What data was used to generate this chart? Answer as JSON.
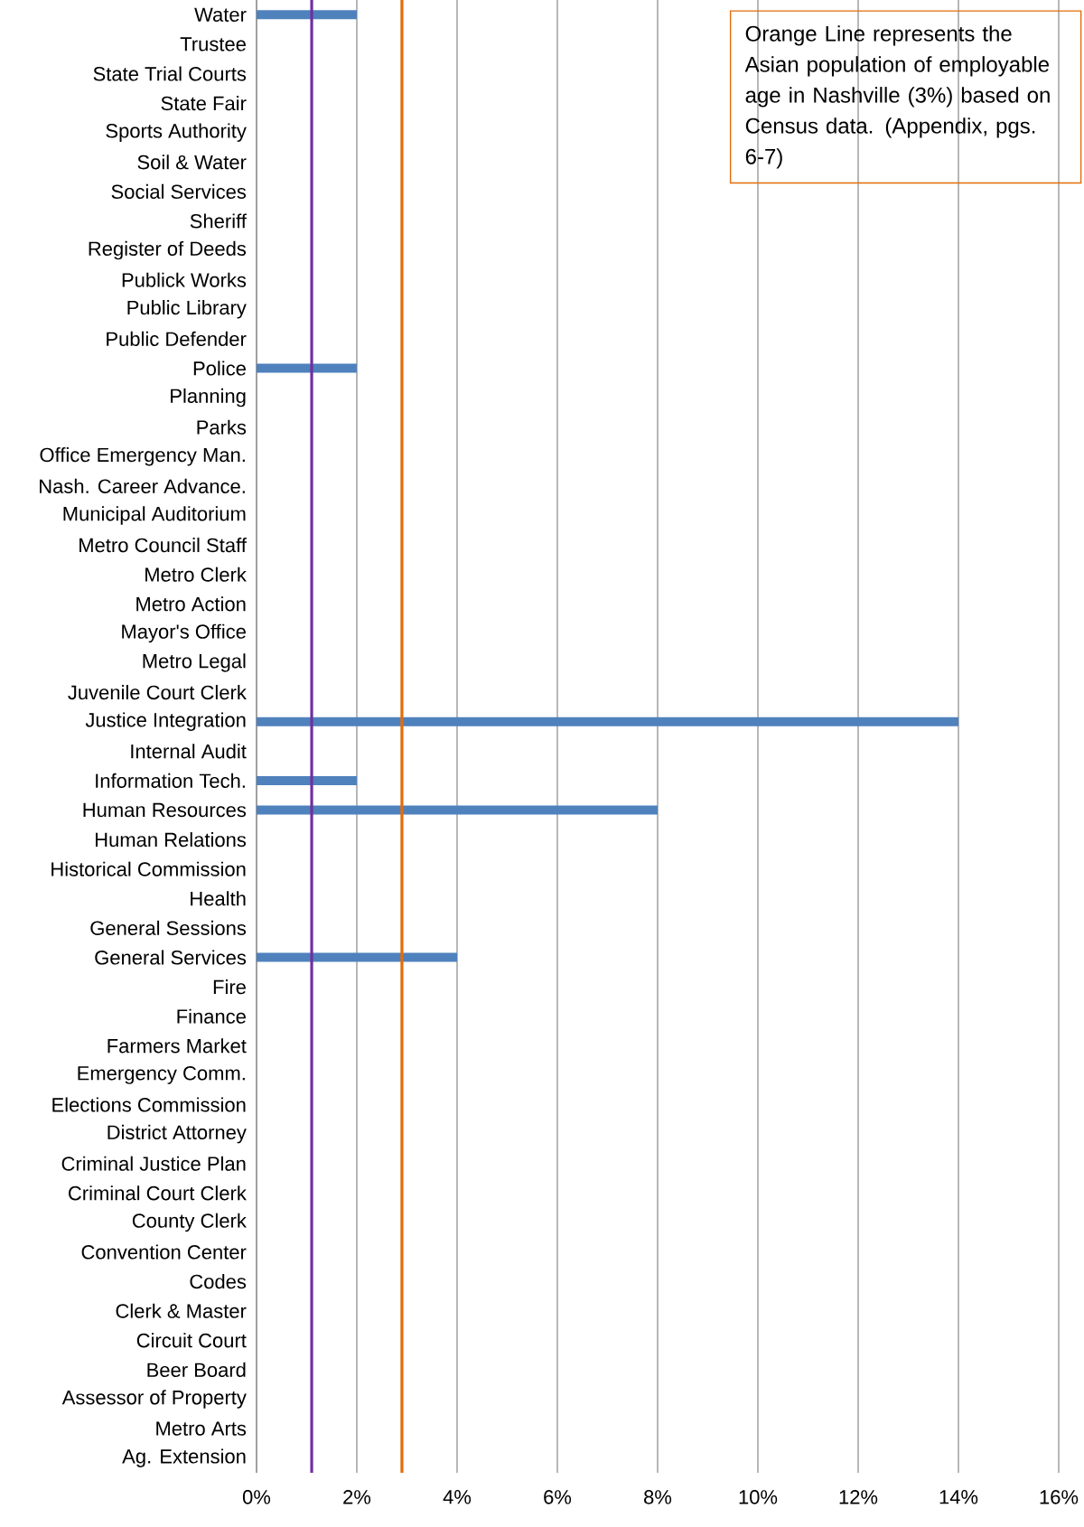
{
  "chart_data": {
    "type": "bar",
    "orientation": "horizontal",
    "categories": [
      "Water",
      "Trustee",
      "State Trial Courts",
      "State Fair",
      "Sports Authority",
      "Soil & Water",
      "Social Services",
      "Sheriff",
      "Register of Deeds",
      "Publick Works",
      "Public Library",
      "Public Defender",
      "Police",
      "Planning",
      "Parks",
      "Office Emergency Man.",
      "Nash. Career Advance.",
      "Municipal Auditorium",
      "Metro Council Staff",
      "Metro Clerk",
      "Metro Action",
      "Mayor's Office",
      "Metro Legal",
      "Juvenile Court Clerk",
      "Justice Integration",
      "Internal Audit",
      "Information Tech.",
      "Human Resources",
      "Human Relations",
      "Historical Commission",
      "Health",
      "General Sessions",
      "General Services",
      "Fire",
      "Finance",
      "Farmers Market",
      "Emergency Comm.",
      "Elections Commission",
      "District Attorney",
      "Criminal Justice Plan",
      "Criminal Court Clerk",
      "County Clerk",
      "Convention Center",
      "Codes",
      "Clerk & Master",
      "Circuit Court",
      "Beer Board",
      "Assessor of Property",
      "Metro Arts",
      "Ag. Extension"
    ],
    "values": [
      2,
      0,
      0,
      0,
      0,
      0,
      0,
      0,
      0,
      0,
      0,
      0,
      2,
      0,
      0,
      0,
      0,
      0,
      0,
      0,
      0,
      0,
      0,
      0,
      14,
      0,
      2,
      8,
      0,
      0,
      0,
      0,
      4,
      0,
      0,
      0,
      0,
      0,
      0,
      0,
      0,
      0,
      0,
      0,
      0,
      0,
      0,
      0,
      0,
      0
    ],
    "color": "#4f81bd",
    "xlim": [
      0,
      16
    ],
    "xticks": [
      {
        "value": 0,
        "label": "0%"
      },
      {
        "value": 2,
        "label": "2%"
      },
      {
        "value": 4,
        "label": "4%"
      },
      {
        "value": 6,
        "label": "6%"
      },
      {
        "value": 8,
        "label": "8%"
      },
      {
        "value": 10,
        "label": "10%"
      },
      {
        "value": 12,
        "label": "12%"
      },
      {
        "value": 14,
        "label": "14%"
      },
      {
        "value": 16,
        "label": "16%"
      }
    ],
    "grid": "x",
    "ref_lines": [
      {
        "axis": "x",
        "value": 2.9,
        "color": "#e36c09"
      },
      {
        "axis": "x",
        "value": 1.1,
        "color": "#7030a0"
      }
    ],
    "annotations": [
      "Orange Line represents the Asian population of employable age in Nashville (3%) based on Census data. (Appendix, pgs. 6-7)"
    ]
  }
}
